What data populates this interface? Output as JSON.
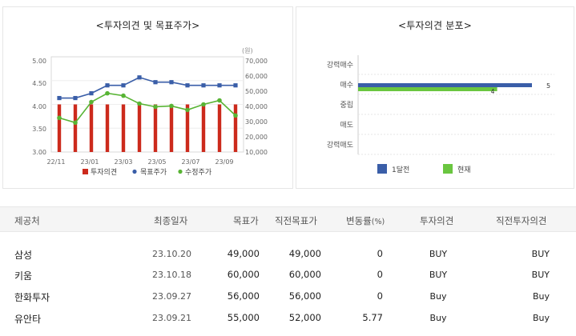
{
  "left_chart_title": "<투자의견 및 목표주가>",
  "right_chart_title": "<투자의견 분포>",
  "chart_data": [
    {
      "type": "bar+line",
      "title": "<투자의견 및 목표주가>",
      "unit_label": "(원)",
      "x_ticks": [
        "22/11",
        "23/01",
        "23/03",
        "23/05",
        "23/07",
        "23/09"
      ],
      "y_left_ticks": [
        "3.00",
        "3.50",
        "4.00",
        "4.50",
        "5.00"
      ],
      "y_right_ticks": [
        "10,000",
        "20,000",
        "30,000",
        "40,000",
        "50,000",
        "60,000",
        "70,000"
      ],
      "ylim_left": [
        3.0,
        5.0
      ],
      "ylim_right": [
        10000,
        70000
      ],
      "n_periods": 12,
      "series": [
        {
          "name": "투자의견",
          "type": "bar",
          "axis": "left",
          "color": "#cc2a1c",
          "values": [
            4,
            4,
            4,
            4,
            4,
            4,
            4,
            4,
            4,
            4,
            4,
            4
          ]
        },
        {
          "name": "목표주가",
          "type": "line",
          "axis": "right",
          "color": "#3a5ea8",
          "values": [
            44000,
            44000,
            47000,
            52000,
            52000,
            57000,
            54000,
            54000,
            52000,
            52000,
            52000,
            52000
          ]
        },
        {
          "name": "수정주가",
          "type": "line",
          "axis": "right",
          "color": "#58b434",
          "values": [
            31500,
            28500,
            41500,
            47000,
            45500,
            40500,
            38500,
            39000,
            36500,
            40000,
            42500,
            33000
          ]
        }
      ],
      "legend": [
        "투자의견",
        "목표주가",
        "수정주가"
      ]
    },
    {
      "type": "bar",
      "orientation": "horizontal",
      "title": "<투자의견 분포>",
      "categories": [
        "강력매수",
        "매수",
        "중립",
        "매도",
        "강력매도"
      ],
      "xlim": [
        0,
        5
      ],
      "series": [
        {
          "name": "1달전",
          "color": "#3a5ea8",
          "values": [
            0,
            5,
            0,
            0,
            0
          ]
        },
        {
          "name": "현재",
          "color": "#6ac640",
          "values": [
            0,
            4,
            0,
            0,
            0
          ]
        }
      ],
      "data_labels": [
        "5",
        "4"
      ],
      "legend": [
        "1달전",
        "현재"
      ]
    }
  ],
  "table": {
    "headers": {
      "firm": "제공처",
      "date": "최종일자",
      "target": "목표가",
      "prev_target": "직전목표가",
      "change": "변동률",
      "change_unit": "(%)",
      "opinion": "투자의견",
      "prev_opinion": "직전투자의견"
    },
    "rows": [
      {
        "firm": "삼성",
        "date": "23.10.20",
        "target": "49,000",
        "prev_target": "49,000",
        "change": "0",
        "opinion": "BUY",
        "prev_opinion": "BUY"
      },
      {
        "firm": "키움",
        "date": "23.10.18",
        "target": "60,000",
        "prev_target": "60,000",
        "change": "0",
        "opinion": "BUY",
        "prev_opinion": "BUY"
      },
      {
        "firm": "한화투자",
        "date": "23.09.27",
        "target": "56,000",
        "prev_target": "56,000",
        "change": "0",
        "opinion": "Buy",
        "prev_opinion": "Buy"
      },
      {
        "firm": "유안타",
        "date": "23.09.21",
        "target": "55,000",
        "prev_target": "52,000",
        "change": "5.77",
        "opinion": "Buy",
        "prev_opinion": "Buy"
      }
    ]
  }
}
